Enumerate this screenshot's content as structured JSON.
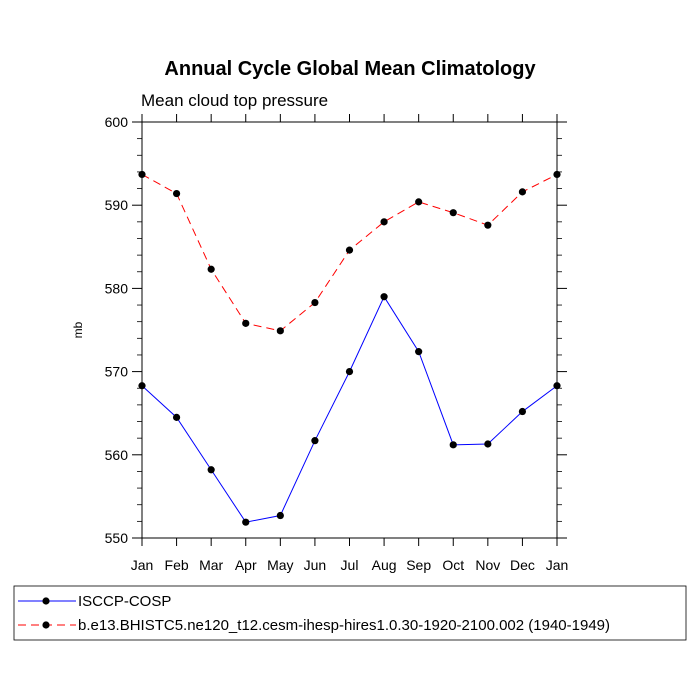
{
  "chart_data": {
    "type": "line",
    "title": "Annual Cycle Global Mean Climatology",
    "subtitle": "Mean cloud top pressure",
    "ylabel": "mb",
    "xlabel": "",
    "ylim": [
      550,
      600
    ],
    "yticks": [
      550,
      560,
      570,
      580,
      590,
      600
    ],
    "categories": [
      "Jan",
      "Feb",
      "Mar",
      "Apr",
      "May",
      "Jun",
      "Jul",
      "Aug",
      "Sep",
      "Oct",
      "Nov",
      "Dec",
      "Jan"
    ],
    "series": [
      {
        "name": "ISCCP-COSP",
        "color": "#0000ff",
        "line_style": "solid",
        "values": [
          568.3,
          564.5,
          558.2,
          551.9,
          552.7,
          561.7,
          570.0,
          579.0,
          572.4,
          561.2,
          561.3,
          565.2,
          568.3
        ]
      },
      {
        "name": "b.e13.BHISTC5.ne120_t12.cesm-ihesp-hires1.0.30-1920-2100.002 (1940-1949)",
        "color": "#ff0000",
        "line_style": "dashed",
        "values": [
          593.7,
          591.4,
          582.3,
          575.8,
          574.9,
          578.3,
          584.6,
          588.0,
          590.4,
          589.1,
          587.6,
          591.6,
          593.7
        ]
      }
    ],
    "legend_position": "bottom"
  }
}
